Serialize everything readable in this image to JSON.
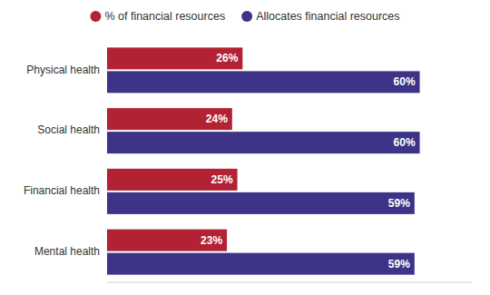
{
  "chart_data": {
    "type": "bar",
    "orientation": "horizontal",
    "categories": [
      "Physical health",
      "Social health",
      "Financial health",
      "Mental health"
    ],
    "series": [
      {
        "name": "% of financial resources",
        "color": "#b22234",
        "values": [
          26,
          24,
          25,
          23
        ],
        "value_labels": [
          "26%",
          "24%",
          "25%",
          "23%"
        ]
      },
      {
        "name": "Allocates financial resources",
        "color": "#3d3487",
        "values": [
          60,
          60,
          59,
          59
        ],
        "value_labels": [
          "60%",
          "60%",
          "59%",
          "59%"
        ]
      }
    ],
    "xlim": [
      0,
      70
    ],
    "data_labels": true,
    "tick_labels": "y",
    "legend": "top",
    "grid": false
  }
}
